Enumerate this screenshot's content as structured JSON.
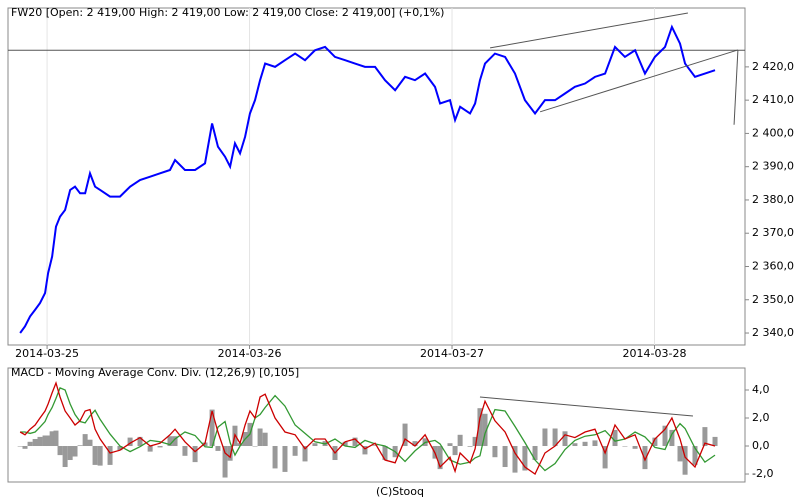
{
  "chart_data": [
    {
      "type": "line",
      "title": "FW20 [Open: 2 419,00  High: 2 419,00  Low: 2 419,00  Close: 2 419,00] (+0,1%)",
      "x": [
        -0.133,
        -0.109,
        -0.084,
        -0.059,
        -0.035,
        -0.01,
        0.005,
        0.025,
        0.044,
        0.064,
        0.089,
        0.114,
        0.138,
        0.163,
        0.188,
        0.212,
        0.237,
        0.262,
        0.311,
        0.36,
        0.41,
        0.459,
        0.509,
        0.558,
        0.607,
        0.632,
        0.681,
        0.731,
        0.78,
        0.815,
        0.844,
        0.879,
        0.904,
        0.928,
        0.953,
        0.978,
        1.002,
        1.027,
        1.052,
        1.077,
        1.126,
        1.175,
        1.225,
        1.274,
        1.323,
        1.373,
        1.422,
        1.472,
        1.521,
        1.57,
        1.62,
        1.669,
        1.719,
        1.768,
        1.817,
        1.867,
        1.916,
        1.941,
        1.99,
        2.015,
        2.04,
        2.089,
        2.114,
        2.138,
        2.163,
        2.212,
        2.262,
        2.311,
        2.36,
        2.41,
        2.459,
        2.509,
        2.558,
        2.607,
        2.657,
        2.706,
        2.756,
        2.805,
        2.854,
        2.904,
        2.953,
        3.002,
        3.052,
        3.086,
        3.126,
        3.151,
        3.2,
        3.249,
        3.299
      ],
      "series": [
        {
          "name": "FW20",
          "color": "#0000ff",
          "values": [
            2340,
            2342,
            2345,
            2347,
            2349,
            2352,
            2358,
            2363,
            2372,
            2375,
            2377,
            2383,
            2384,
            2382,
            2382,
            2388,
            2384,
            2383,
            2381,
            2381,
            2384,
            2386,
            2387,
            2388,
            2389,
            2392,
            2389,
            2389,
            2391,
            2403,
            2396,
            2393,
            2390,
            2397,
            2394,
            2399,
            2406,
            2410,
            2416,
            2421,
            2420,
            2422,
            2424,
            2422,
            2425,
            2426,
            2423,
            2422,
            2421,
            2420,
            2420,
            2416,
            2413,
            2417,
            2416,
            2418,
            2414,
            2409,
            2410,
            2404,
            2408,
            2406,
            2409,
            2416,
            2421,
            2424,
            2423,
            2418,
            2410,
            2406,
            2410,
            2410,
            2412,
            2414,
            2415,
            2417,
            2418,
            2426,
            2423,
            2425,
            2418,
            2423,
            2426,
            2432,
            2427,
            2421,
            2417,
            2418,
            2419
          ]
        }
      ],
      "reference_line": 2425,
      "trend_lines": [
        [
          2.188,
          2425.7,
          3.165,
          2436.2
        ],
        [
          2.435,
          2406.5,
          3.412,
          2425.1
        ],
        [
          3.412,
          2425.1,
          3.393,
          2402.6
        ]
      ],
      "xlim": [
        -0.193,
        3.447
      ],
      "xticks": [
        {
          "value": 0,
          "label": "2014-03-25"
        },
        {
          "value": 1,
          "label": "2014-03-26"
        },
        {
          "value": 2,
          "label": "2014-03-27"
        },
        {
          "value": 3,
          "label": "2014-03-28"
        }
      ],
      "ylim": [
        2336.4,
        2437.7
      ],
      "yticks": [
        {
          "value": 2340,
          "label": "2 340,0"
        },
        {
          "value": 2350,
          "label": "2 350,0"
        },
        {
          "value": 2360,
          "label": "2 360,0"
        },
        {
          "value": 2370,
          "label": "2 370,0"
        },
        {
          "value": 2380,
          "label": "2 380,0"
        },
        {
          "value": 2390,
          "label": "2 390,0"
        },
        {
          "value": 2400,
          "label": "2 400,0"
        },
        {
          "value": 2410,
          "label": "2 410,0"
        },
        {
          "value": 2420,
          "label": "2 420,0"
        }
      ],
      "grid": "x"
    },
    {
      "type": "line",
      "title": "MACD - Moving Average Conv. Div. (12,26,9) [0,105]",
      "x": [
        -0.133,
        -0.109,
        -0.084,
        -0.059,
        -0.035,
        -0.01,
        0.005,
        0.025,
        0.044,
        0.064,
        0.089,
        0.114,
        0.138,
        0.163,
        0.188,
        0.212,
        0.237,
        0.262,
        0.311,
        0.36,
        0.41,
        0.459,
        0.509,
        0.558,
        0.607,
        0.632,
        0.681,
        0.731,
        0.78,
        0.815,
        0.844,
        0.879,
        0.904,
        0.928,
        0.953,
        0.978,
        1.002,
        1.027,
        1.052,
        1.077,
        1.126,
        1.175,
        1.225,
        1.274,
        1.323,
        1.373,
        1.422,
        1.472,
        1.521,
        1.57,
        1.62,
        1.669,
        1.719,
        1.768,
        1.817,
        1.867,
        1.916,
        1.941,
        1.99,
        2.015,
        2.04,
        2.089,
        2.114,
        2.138,
        2.163,
        2.212,
        2.262,
        2.311,
        2.36,
        2.41,
        2.459,
        2.509,
        2.558,
        2.607,
        2.657,
        2.706,
        2.756,
        2.805,
        2.854,
        2.904,
        2.953,
        3.002,
        3.052,
        3.086,
        3.126,
        3.151,
        3.2,
        3.249,
        3.299
      ],
      "histogram": {
        "color": "#999999",
        "values": [
          0,
          -0.2,
          0.3,
          0.5,
          0.65,
          0.75,
          0.75,
          1.05,
          1.1,
          -0.65,
          -1.5,
          -1.0,
          -0.75,
          0.05,
          0.85,
          0.45,
          -1.35,
          -1.4,
          -1.35,
          -0.3,
          0.6,
          0.65,
          -0.4,
          -0.1,
          0.7,
          0.7,
          -0.7,
          -1.15,
          0.25,
          2.6,
          -0.35,
          -2.25,
          -1.05,
          1.45,
          0.2,
          1.0,
          1.65,
          0,
          1.25,
          0.95,
          -1.6,
          -1.85,
          -0.7,
          -1.1,
          0.2,
          0.35,
          -1.0,
          0.3,
          0.6,
          -0.6,
          0.05,
          -1.0,
          -0.8,
          1.6,
          0.35,
          0.55,
          -0.9,
          -1.65,
          0.2,
          -0.65,
          0.8,
          -0.05,
          0.65,
          2.7,
          2.3,
          -0.8,
          -1.5,
          -1.9,
          -1.75,
          -1.0,
          1.25,
          1.25,
          1.05,
          0.2,
          0.3,
          0.4,
          -1.6,
          1.15,
          0,
          -0.2,
          -1.65,
          0.6,
          1.45,
          1.15,
          -1.1,
          -2.05,
          -1.35,
          1.35,
          0.65
        ]
      },
      "series": [
        {
          "color": "#339933",
          "values": [
            1.0,
            1.0,
            0.9,
            1.0,
            1.35,
            1.75,
            2.25,
            2.75,
            3.4,
            4.15,
            4.0,
            3.0,
            2.25,
            1.75,
            1.65,
            2.15,
            2.55,
            1.9,
            0.85,
            0.0,
            -0.4,
            -0.05,
            0.4,
            0.3,
            0.1,
            0.5,
            1.0,
            0.75,
            -0.05,
            -0.1,
            1.35,
            1.75,
            0.25,
            -0.65,
            0.0,
            0.5,
            0.85,
            2.0,
            2.25,
            2.75,
            3.6,
            2.85,
            1.5,
            0.9,
            0.3,
            0.15,
            0.5,
            0.0,
            -0.1,
            0.4,
            0.15,
            0.0,
            -0.4,
            -1.1,
            -0.35,
            0.25,
            0.4,
            0.15,
            -1.0,
            -1.15,
            -1.3,
            -1.15,
            -0.85,
            -0.7,
            0.9,
            2.6,
            2.5,
            1.4,
            0.25,
            -1.0,
            -1.75,
            -1.25,
            -0.25,
            0.4,
            0.7,
            0.8,
            1.1,
            0.35,
            0.5,
            1.0,
            0.65,
            -0.1,
            -0.25,
            0.85,
            1.6,
            1.25,
            -0.15,
            -1.15,
            -0.65
          ]
        },
        {
          "color": "#cc0000",
          "values": [
            1.0,
            0.8,
            1.2,
            1.5,
            2.0,
            2.5,
            3.0,
            3.8,
            4.5,
            3.5,
            2.5,
            2.0,
            1.5,
            1.8,
            2.5,
            2.6,
            1.2,
            0.5,
            -0.5,
            -0.3,
            0.2,
            0.6,
            0.0,
            0.2,
            0.8,
            1.2,
            0.3,
            -0.4,
            0.2,
            2.5,
            1.0,
            -0.5,
            -0.8,
            0.8,
            0.2,
            1.5,
            2.5,
            2.0,
            3.5,
            3.7,
            2.0,
            1.0,
            0.8,
            -0.2,
            0.5,
            0.5,
            -0.5,
            0.3,
            0.5,
            -0.2,
            0.2,
            -1.0,
            -1.2,
            0.5,
            0.0,
            0.8,
            -0.5,
            -1.5,
            -0.8,
            -1.8,
            -0.5,
            -1.2,
            -0.2,
            2.0,
            3.2,
            1.8,
            1.0,
            -0.5,
            -1.5,
            -2.0,
            -0.5,
            0.0,
            0.8,
            0.6,
            1.0,
            1.2,
            -0.5,
            1.5,
            0.5,
            0.8,
            -1.0,
            0.5,
            1.2,
            2.0,
            0.5,
            -0.8,
            -1.5,
            0.2,
            0.0
          ]
        }
      ],
      "trend_lines": [
        [
          2.138,
          3.5,
          3.19,
          2.14
        ]
      ],
      "xlim": [
        -0.193,
        3.447
      ],
      "ylim": [
        -2.57,
        5.57
      ],
      "yticks": [
        {
          "value": -2,
          "label": "-2,0"
        },
        {
          "value": 0,
          "label": "0,0"
        },
        {
          "value": 2,
          "label": "2,0"
        },
        {
          "value": 4,
          "label": "4,0"
        }
      ]
    }
  ],
  "footer": "(C)Stooq"
}
